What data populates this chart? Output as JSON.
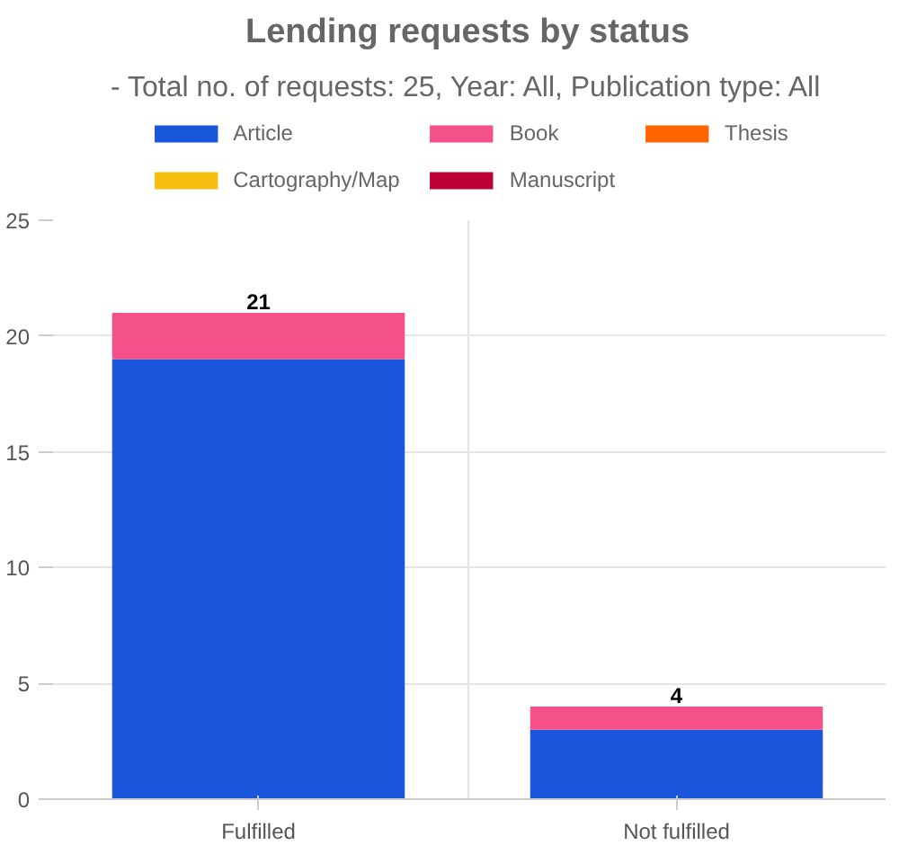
{
  "chart_data": {
    "type": "bar",
    "title": "Lending requests by status",
    "subtitle": "- Total no. of requests: 25, Year: All, Publication type: All",
    "categories": [
      "Fulfilled",
      "Not fulfilled"
    ],
    "stacked": true,
    "series": [
      {
        "name": "Article",
        "color": "#1a56db",
        "values": [
          19,
          3
        ]
      },
      {
        "name": "Book",
        "color": "#f4508a",
        "values": [
          2,
          1
        ]
      },
      {
        "name": "Thesis",
        "color": "#ff6600",
        "values": [
          0,
          0
        ]
      },
      {
        "name": "Cartography/Map",
        "color": "#f5bd0f",
        "values": [
          0,
          0
        ]
      },
      {
        "name": "Manuscript",
        "color": "#bb0033",
        "values": [
          0,
          0
        ]
      }
    ],
    "totals": [
      "21",
      "4"
    ],
    "ylim": [
      0,
      25
    ],
    "yticks": [
      0,
      5,
      10,
      15,
      20,
      25
    ],
    "grid": true,
    "legend": "top"
  }
}
